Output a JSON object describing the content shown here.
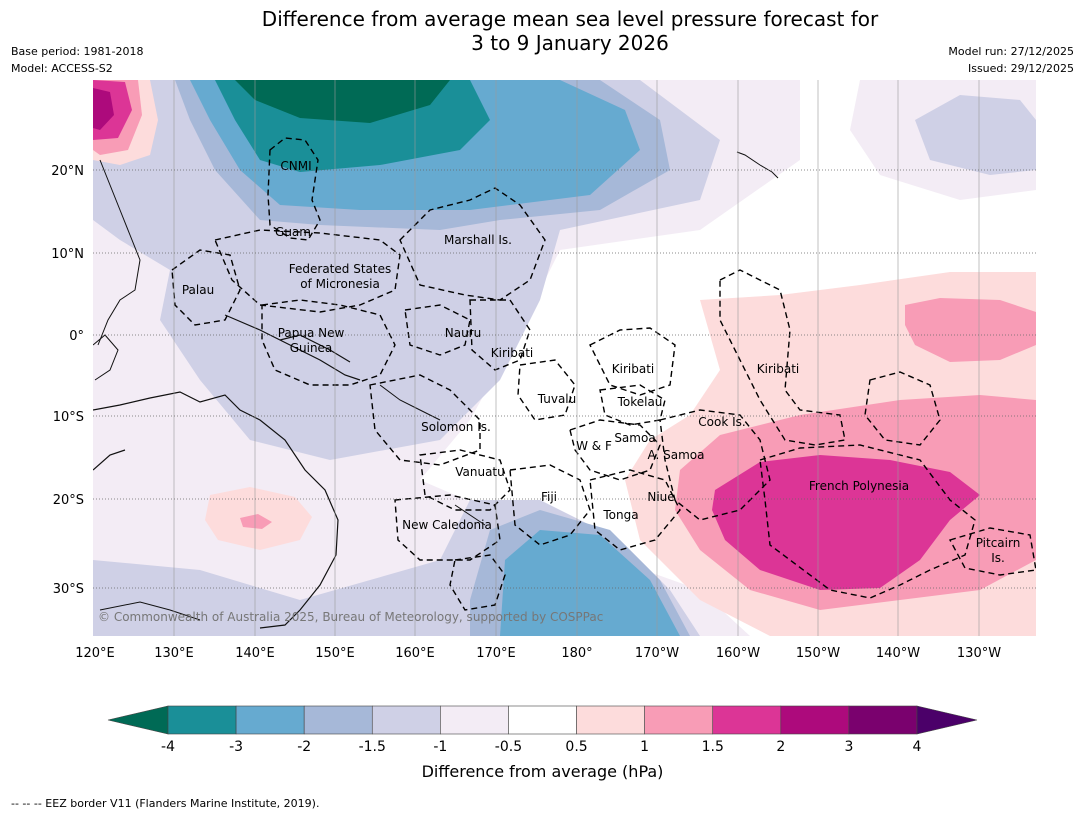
{
  "header": {
    "title_line1": "Difference from average mean sea level pressure forecast for",
    "title_line2": "3 to 9 January 2026",
    "base_period": "Base period: 1981-2018",
    "model": "Model: ACCESS-S2",
    "model_run": "Model run: 27/12/2025",
    "issued": "Issued: 29/12/2025"
  },
  "axes": {
    "lon_labels": [
      "120°E",
      "130°E",
      "140°E",
      "150°E",
      "160°E",
      "170°E",
      "180°",
      "170°W",
      "160°W",
      "150°W",
      "140°W",
      "130°W"
    ],
    "lat_labels": [
      "20°N",
      "10°N",
      "0°",
      "10°S",
      "20°S",
      "30°S"
    ]
  },
  "places": {
    "cnmi": "CNMI",
    "guam": "Guam",
    "marshall": "Marshall Is.",
    "fsm_line1": "Federated States",
    "fsm_line2": "of Micronesia",
    "palau": "Palau",
    "png_line1": "Papua New",
    "png_line2": "Guinea",
    "nauru": "Nauru",
    "kiribati_west": "Kiribati",
    "kiribati_central": "Kiribati",
    "kiribati_east": "Kiribati",
    "tuvalu": "Tuvalu",
    "tokelau": "Tokelau",
    "cook": "Cook Is.",
    "solomon": "Solomon Is.",
    "wallis": "W & F",
    "samoa": "Samoa",
    "american_samoa": "A. Samoa",
    "vanuatu": "Vanuatu",
    "fiji": "Fiji",
    "niue": "Niue",
    "tonga": "Tonga",
    "french_polynesia": "French Polynesia",
    "new_caledonia": "New Caledonia",
    "pitcairn_line1": "Pitcairn",
    "pitcairn_line2": "Is."
  },
  "copyright": "© Commonwealth of Australia 2025, Bureau of Meteorology, supported by COSPPac",
  "colorbar": {
    "ticks": [
      "-4",
      "-3",
      "-2",
      "-1.5",
      "-1",
      "-0.5",
      "0.5",
      "1",
      "1.5",
      "2",
      "3",
      "4"
    ],
    "colors": [
      "#1a8f98",
      "#66aad0",
      "#a6b8d8",
      "#cfd0e6",
      "#f3ecf5",
      "#ffffff",
      "#fddcdc",
      "#f89cb6",
      "#dc3596",
      "#ad0a7c",
      "#7a016e"
    ],
    "under_color": "#006a55",
    "over_color": "#4b0069",
    "label": "Difference from average (hPa)"
  },
  "footnote": "--  --  -- EEZ border V11 (Flanders Marine Institute, 2019)."
}
